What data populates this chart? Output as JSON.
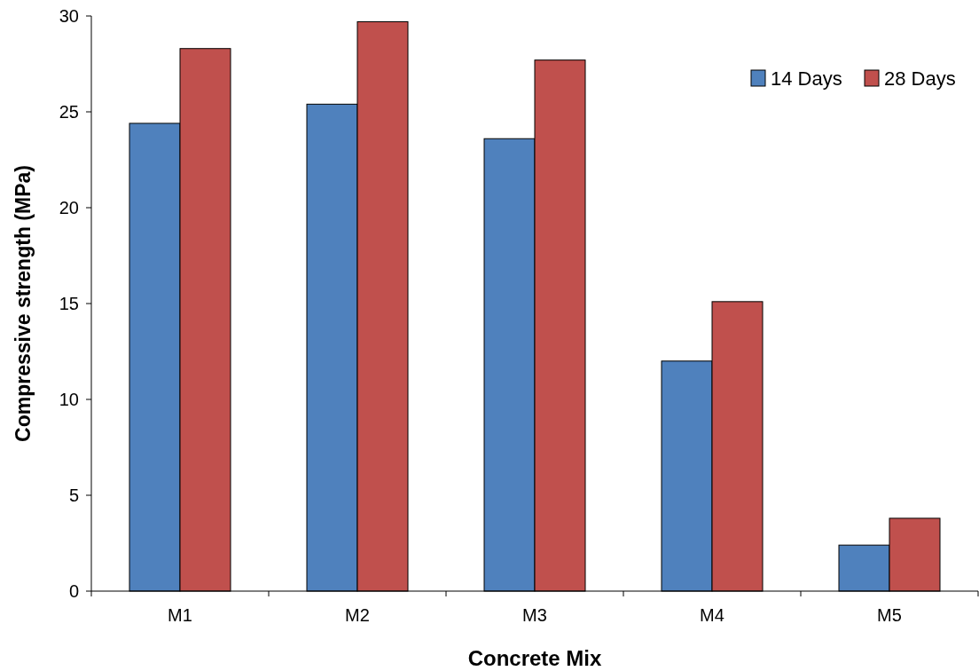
{
  "chart_data": {
    "type": "bar",
    "xlabel": "Concrete Mix",
    "ylabel": "Compressive strength (MPa)",
    "categories": [
      "M1",
      "M2",
      "M3",
      "M4",
      "M5"
    ],
    "series": [
      {
        "name": "14 Days",
        "color": "#4f81bd",
        "values": [
          24.4,
          25.4,
          23.6,
          12.0,
          2.4
        ]
      },
      {
        "name": "28 Days",
        "color": "#c0504d",
        "values": [
          28.3,
          29.7,
          27.7,
          15.1,
          3.8
        ]
      }
    ],
    "ylim": [
      0,
      30
    ],
    "yticks": [
      0,
      5,
      10,
      15,
      20,
      25,
      30
    ],
    "grid": false,
    "legend": "top right"
  }
}
